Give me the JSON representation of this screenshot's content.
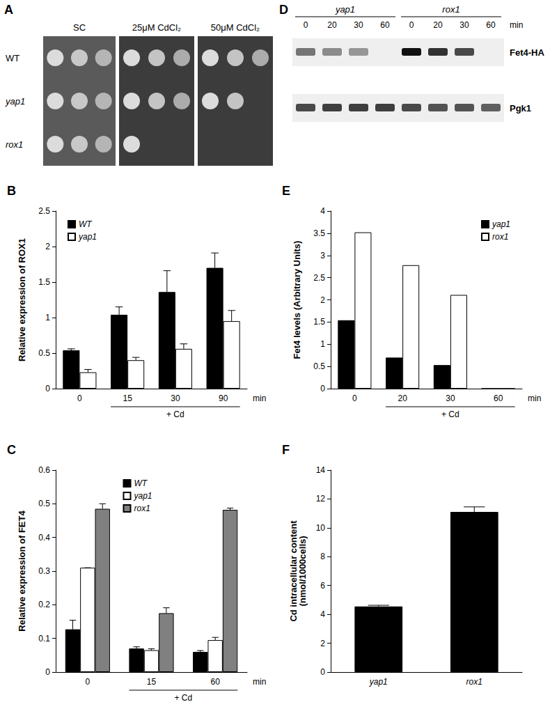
{
  "chart_data": [
    {
      "type": "spot_assay",
      "title": "A",
      "rows": [
        "WT",
        "yap1",
        "rox1"
      ],
      "columns": [
        "SC",
        "25μM CdCl₂",
        "50μM CdCl₂"
      ],
      "spots_visible": [
        [
          3,
          3,
          3
        ],
        [
          3,
          3,
          2
        ],
        [
          3,
          1,
          0
        ]
      ]
    },
    {
      "type": "bar",
      "title": "B",
      "categories": [
        "0",
        "15",
        "30",
        "90"
      ],
      "x_label": "min",
      "annotation": {
        "text": "+ Cd",
        "from": "15",
        "to": "90"
      },
      "y_label": "Relative expression of ROX1",
      "ylim": [
        0,
        2.5
      ],
      "yticks": [
        0,
        0.5,
        1,
        1.5,
        2,
        2.5
      ],
      "grid": false,
      "legend": "upper left",
      "series": [
        {
          "name": "WT",
          "color": "#000000",
          "values": [
            0.54,
            1.04,
            1.36,
            1.7
          ],
          "errors": [
            0.02,
            0.11,
            0.3,
            0.21
          ]
        },
        {
          "name": "yap1",
          "color": "#ffffff",
          "values": [
            0.23,
            0.4,
            0.56,
            0.95
          ],
          "errors": [
            0.04,
            0.04,
            0.07,
            0.15
          ]
        }
      ]
    },
    {
      "type": "bar",
      "title": "C",
      "categories": [
        "0",
        "15",
        "60"
      ],
      "x_label": "min",
      "annotation": {
        "text": "+ Cd",
        "from": "15",
        "to": "60"
      },
      "y_label": "Relative expression of FET4",
      "ylim": [
        0,
        0.6
      ],
      "yticks": [
        0,
        0.1,
        0.2,
        0.3,
        0.4,
        0.5,
        0.6
      ],
      "grid": false,
      "legend": "upper center",
      "series": [
        {
          "name": "WT",
          "color": "#000000",
          "values": [
            0.127,
            0.07,
            0.06
          ],
          "errors": [
            0.027,
            0.005,
            0.004
          ]
        },
        {
          "name": "yap1",
          "color": "#ffffff",
          "values": [
            0.31,
            0.065,
            0.095
          ],
          "errors": [
            0,
            0.004,
            0.008
          ]
        },
        {
          "name": "rox1",
          "color": "#808080",
          "values": [
            0.485,
            0.175,
            0.482
          ],
          "errors": [
            0.015,
            0.016,
            0.005
          ]
        }
      ]
    },
    {
      "type": "western_blot",
      "title": "D",
      "groups": [
        {
          "name": "yap1",
          "lanes": [
            "0",
            "20",
            "30",
            "60"
          ]
        },
        {
          "name": "rox1",
          "lanes": [
            "0",
            "20",
            "30",
            "60"
          ]
        }
      ],
      "lane_unit": "min",
      "rows": [
        {
          "name": "Fet4-HA",
          "band_intensity": [
            0.55,
            0.45,
            0.4,
            0,
            1,
            0.85,
            0.75,
            0
          ]
        },
        {
          "name": "Pgk1",
          "band_intensity": [
            0.75,
            0.8,
            0.8,
            0.8,
            0.75,
            0.7,
            0.7,
            0.65
          ]
        }
      ]
    },
    {
      "type": "bar",
      "title": "E",
      "categories": [
        "0",
        "20",
        "30",
        "60"
      ],
      "x_label": "min",
      "annotation": {
        "text": "+ Cd",
        "from": "20",
        "to": "60"
      },
      "y_label": "Fet4 levels (Arbitrary Units)",
      "ylim": [
        0,
        4
      ],
      "yticks": [
        0,
        0.5,
        1,
        1.5,
        2,
        2.5,
        3,
        3.5,
        4
      ],
      "grid": false,
      "legend": "upper right",
      "series": [
        {
          "name": "yap1",
          "color": "#000000",
          "values": [
            1.54,
            0.7,
            0.53,
            0
          ]
        },
        {
          "name": "rox1",
          "color": "#ffffff",
          "values": [
            3.52,
            2.78,
            2.11,
            0
          ]
        }
      ]
    },
    {
      "type": "bar",
      "title": "F",
      "categories": [
        "yap1",
        "rox1"
      ],
      "y_label": "Cd intracellular content\n(nmol/1000cells)",
      "ylim": [
        0,
        14
      ],
      "yticks": [
        0,
        2,
        4,
        6,
        8,
        10,
        12,
        14
      ],
      "grid": false,
      "color": "#000000",
      "values": [
        4.55,
        11.1
      ],
      "errors": [
        0.08,
        0.35
      ]
    }
  ]
}
